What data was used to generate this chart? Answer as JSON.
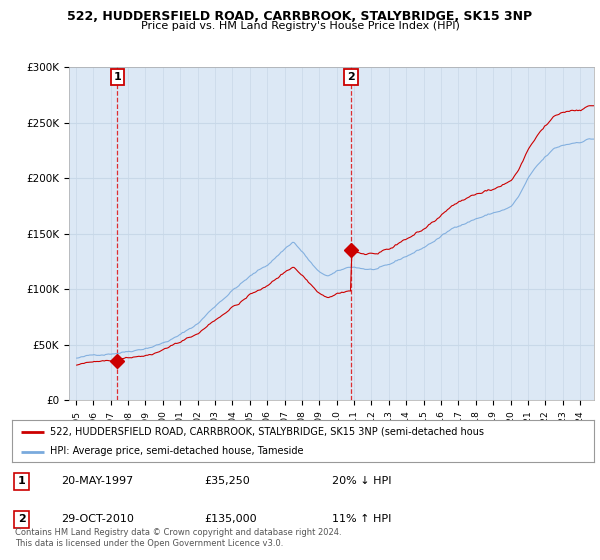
{
  "title": "522, HUDDERSFIELD ROAD, CARRBROOK, STALYBRIDGE, SK15 3NP",
  "subtitle": "Price paid vs. HM Land Registry's House Price Index (HPI)",
  "red_label": "522, HUDDERSFIELD ROAD, CARRBROOK, STALYBRIDGE, SK15 3NP (semi-detached hous",
  "blue_label": "HPI: Average price, semi-detached house, Tameside",
  "footer": "Contains HM Land Registry data © Crown copyright and database right 2024.\nThis data is licensed under the Open Government Licence v3.0.",
  "ylim": [
    0,
    300000
  ],
  "yticks": [
    0,
    50000,
    100000,
    150000,
    200000,
    250000,
    300000
  ],
  "ytick_labels": [
    "£0",
    "£50K",
    "£100K",
    "£150K",
    "£200K",
    "£250K",
    "£300K"
  ],
  "transaction1_price": 35250,
  "transaction1_label": "20-MAY-1997",
  "transaction1_amount": "£35,250",
  "transaction1_hpi": "20% ↓ HPI",
  "transaction1_x": 1997.38,
  "transaction2_price": 135000,
  "transaction2_label": "29-OCT-2010",
  "transaction2_amount": "£135,000",
  "transaction2_hpi": "11% ↑ HPI",
  "transaction2_x": 2010.83,
  "background_color": "#ffffff",
  "plot_bg": "#dce8f5",
  "grid_color": "#c8d8e8",
  "red_line_color": "#cc0000",
  "blue_line_color": "#7aaadd"
}
